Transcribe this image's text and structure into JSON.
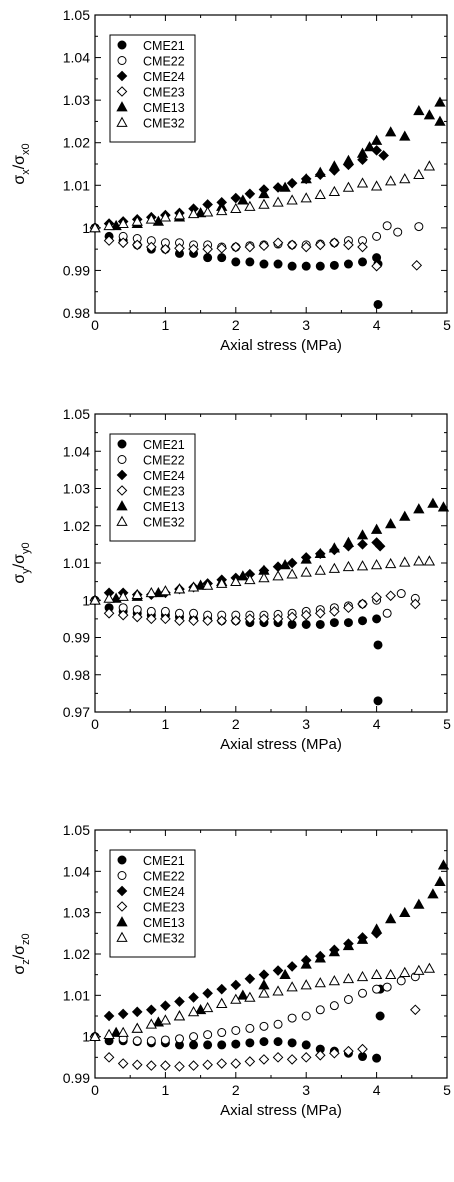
{
  "chart_data": [
    {
      "type": "scatter",
      "xlabel": "Axial stress (MPa)",
      "ylabel": {
        "main": "σ",
        "sub1": "x",
        "mid": "/σ",
        "sub2": "x0"
      },
      "xlim": [
        0,
        5
      ],
      "ylim": [
        0.98,
        1.05
      ],
      "xticks": [
        "0",
        "1",
        "2",
        "3",
        "4",
        "5"
      ],
      "yticks": [
        "0.98",
        "0.99",
        "1",
        "1.01",
        "1.02",
        "1.03",
        "1.04",
        "1.05"
      ],
      "grid": false,
      "legend_position": "top-left",
      "series": [
        {
          "name": "CME21",
          "marker": "circle-filled",
          "x": [
            0,
            0.2,
            0.4,
            0.6,
            0.8,
            1.0,
            1.2,
            1.4,
            1.6,
            1.8,
            2.0,
            2.2,
            2.4,
            2.6,
            2.8,
            3.0,
            3.2,
            3.4,
            3.6,
            3.8,
            4.0,
            4.02,
            4.02
          ],
          "y": [
            1.0,
            0.998,
            0.997,
            0.996,
            0.995,
            0.995,
            0.994,
            0.994,
            0.993,
            0.993,
            0.992,
            0.992,
            0.9915,
            0.9915,
            0.991,
            0.991,
            0.991,
            0.9912,
            0.9915,
            0.992,
            0.993,
            0.9915,
            0.982
          ]
        },
        {
          "name": "CME22",
          "marker": "circle-open",
          "x": [
            0,
            0.4,
            0.6,
            0.8,
            1.0,
            1.2,
            1.4,
            1.6,
            1.8,
            2.0,
            2.2,
            2.4,
            2.6,
            2.8,
            3.0,
            3.2,
            3.4,
            3.6,
            3.8,
            4.0,
            4.15,
            4.3,
            4.6
          ],
          "y": [
            1.0,
            0.998,
            0.9975,
            0.997,
            0.9965,
            0.9965,
            0.996,
            0.996,
            0.9955,
            0.9955,
            0.9958,
            0.996,
            0.9962,
            0.996,
            0.996,
            0.9962,
            0.9965,
            0.997,
            0.997,
            0.998,
            1.0005,
            0.999,
            1.0003
          ]
        },
        {
          "name": "CME24",
          "marker": "diamond-filled",
          "x": [
            0,
            0.2,
            0.4,
            0.6,
            0.8,
            1.0,
            1.2,
            1.4,
            1.6,
            1.8,
            2.0,
            2.2,
            2.4,
            2.6,
            2.8,
            3.0,
            3.2,
            3.4,
            3.6,
            3.8,
            4.0,
            4.1
          ],
          "y": [
            1.0,
            1.001,
            1.0015,
            1.002,
            1.0025,
            1.003,
            1.0035,
            1.0045,
            1.0055,
            1.006,
            1.007,
            1.008,
            1.009,
            1.0095,
            1.0105,
            1.0115,
            1.0125,
            1.0135,
            1.0148,
            1.016,
            1.0182,
            1.017
          ]
        },
        {
          "name": "CME23",
          "marker": "diamond-open",
          "x": [
            0,
            0.2,
            0.4,
            0.6,
            0.8,
            1.0,
            1.2,
            1.4,
            1.6,
            1.8,
            2.0,
            2.2,
            2.4,
            2.6,
            2.8,
            3.0,
            3.2,
            3.4,
            3.6,
            3.8,
            4.0,
            4.57
          ],
          "y": [
            1.0,
            0.997,
            0.9965,
            0.996,
            0.9955,
            0.995,
            0.9952,
            0.995,
            0.995,
            0.9952,
            0.9955,
            0.9955,
            0.9958,
            0.9965,
            0.996,
            0.9955,
            0.996,
            0.9965,
            0.996,
            0.9955,
            0.991,
            0.9912
          ]
        },
        {
          "name": "CME13",
          "marker": "triangle-filled",
          "x": [
            0,
            0.3,
            0.6,
            0.9,
            1.2,
            1.5,
            1.8,
            2.1,
            2.4,
            2.7,
            3.0,
            3.2,
            3.4,
            3.6,
            3.8,
            3.9,
            4.0,
            4.2,
            4.4,
            4.6,
            4.75,
            4.9,
            4.9
          ],
          "y": [
            1.0,
            1.0005,
            1.001,
            1.0015,
            1.0025,
            1.0035,
            1.005,
            1.0065,
            1.008,
            1.0095,
            1.0115,
            1.013,
            1.0145,
            1.0158,
            1.0175,
            1.019,
            1.0205,
            1.0225,
            1.0215,
            1.0275,
            1.0265,
            1.0295,
            1.025
          ]
        },
        {
          "name": "CME32",
          "marker": "triangle-open",
          "x": [
            0,
            0.2,
            0.4,
            0.6,
            0.8,
            1.0,
            1.2,
            1.4,
            1.6,
            1.8,
            2.0,
            2.2,
            2.4,
            2.6,
            2.8,
            3.0,
            3.2,
            3.4,
            3.6,
            3.8,
            4.0,
            4.2,
            4.4,
            4.6,
            4.75
          ],
          "y": [
            1.0,
            1.0005,
            1.001,
            1.0015,
            1.002,
            1.0025,
            1.003,
            1.0033,
            1.0037,
            1.004,
            1.0045,
            1.005,
            1.0055,
            1.006,
            1.0065,
            1.007,
            1.0078,
            1.0085,
            1.0095,
            1.0105,
            1.0098,
            1.011,
            1.0115,
            1.0125,
            1.0145
          ]
        }
      ]
    },
    {
      "type": "scatter",
      "xlabel": "Axial stress (MPa)",
      "ylabel": {
        "main": "σ",
        "sub1": "y",
        "mid": "/σ",
        "sub2": "y0"
      },
      "xlim": [
        0,
        5
      ],
      "ylim": [
        0.97,
        1.05
      ],
      "xticks": [
        "0",
        "1",
        "2",
        "3",
        "4",
        "5"
      ],
      "yticks": [
        "0.97",
        "0.98",
        "0.99",
        "1",
        "1.01",
        "1.02",
        "1.03",
        "1.04",
        "1.05"
      ],
      "grid": false,
      "legend_position": "top-left",
      "series": [
        {
          "name": "CME21",
          "marker": "circle-filled",
          "x": [
            0,
            0.2,
            0.4,
            0.6,
            0.8,
            1.0,
            1.2,
            1.4,
            1.6,
            1.8,
            2.0,
            2.2,
            2.4,
            2.6,
            2.8,
            3.0,
            3.2,
            3.4,
            3.6,
            3.8,
            4.0,
            4.02,
            4.02
          ],
          "y": [
            1.0,
            0.998,
            0.997,
            0.9965,
            0.996,
            0.996,
            0.9955,
            0.995,
            0.995,
            0.9945,
            0.9945,
            0.994,
            0.994,
            0.994,
            0.9935,
            0.9935,
            0.9935,
            0.994,
            0.994,
            0.9945,
            0.995,
            0.988,
            0.973
          ]
        },
        {
          "name": "CME22",
          "marker": "circle-open",
          "x": [
            0,
            0.4,
            0.6,
            0.8,
            1.0,
            1.2,
            1.4,
            1.6,
            1.8,
            2.0,
            2.2,
            2.4,
            2.6,
            2.8,
            3.0,
            3.2,
            3.4,
            3.6,
            3.8,
            4.0,
            4.15,
            4.35,
            4.55
          ],
          "y": [
            1.0,
            0.998,
            0.9975,
            0.997,
            0.997,
            0.9965,
            0.9965,
            0.996,
            0.996,
            0.996,
            0.996,
            0.996,
            0.9962,
            0.9965,
            0.997,
            0.9975,
            0.998,
            0.9985,
            0.999,
            1.0,
            0.9965,
            1.0018,
            1.0005
          ]
        },
        {
          "name": "CME24",
          "marker": "diamond-filled",
          "x": [
            0,
            0.2,
            0.4,
            0.6,
            0.8,
            1.0,
            1.2,
            1.4,
            1.6,
            1.8,
            2.0,
            2.2,
            2.4,
            2.6,
            2.8,
            3.0,
            3.2,
            3.4,
            3.6,
            3.8,
            4.0,
            4.05
          ],
          "y": [
            1.0,
            1.002,
            1.002,
            1.0015,
            1.0015,
            1.002,
            1.003,
            1.0035,
            1.0045,
            1.0055,
            1.006,
            1.007,
            1.008,
            1.009,
            1.01,
            1.0115,
            1.0125,
            1.0135,
            1.0145,
            1.015,
            1.0155,
            1.0145
          ]
        },
        {
          "name": "CME23",
          "marker": "diamond-open",
          "x": [
            0,
            0.2,
            0.4,
            0.6,
            0.8,
            1.0,
            1.2,
            1.4,
            1.6,
            1.8,
            2.0,
            2.2,
            2.4,
            2.6,
            2.8,
            3.0,
            3.2,
            3.4,
            3.6,
            3.8,
            4.0,
            4.2,
            4.55
          ],
          "y": [
            1.0,
            0.9965,
            0.996,
            0.9955,
            0.995,
            0.995,
            0.9945,
            0.9945,
            0.9945,
            0.9945,
            0.9945,
            0.995,
            0.995,
            0.995,
            0.9955,
            0.996,
            0.9965,
            0.997,
            0.998,
            0.999,
            1.0008,
            1.0012,
            0.999
          ]
        },
        {
          "name": "CME13",
          "marker": "triangle-filled",
          "x": [
            0,
            0.3,
            0.6,
            0.9,
            1.2,
            1.5,
            1.8,
            2.1,
            2.4,
            2.7,
            3.0,
            3.2,
            3.4,
            3.6,
            3.8,
            4.0,
            4.2,
            4.4,
            4.6,
            4.8,
            4.95
          ],
          "y": [
            1.0,
            1.0005,
            1.001,
            1.002,
            1.003,
            1.004,
            1.005,
            1.0065,
            1.008,
            1.0095,
            1.011,
            1.0125,
            1.014,
            1.0155,
            1.0175,
            1.019,
            1.0205,
            1.0225,
            1.0245,
            1.026,
            1.025
          ]
        },
        {
          "name": "CME32",
          "marker": "triangle-open",
          "x": [
            0,
            0.2,
            0.4,
            0.6,
            0.8,
            1.0,
            1.2,
            1.4,
            1.6,
            1.8,
            2.0,
            2.2,
            2.4,
            2.6,
            2.8,
            3.0,
            3.2,
            3.4,
            3.6,
            3.8,
            4.0,
            4.2,
            4.4,
            4.6,
            4.75
          ],
          "y": [
            1.0,
            1.0005,
            1.001,
            1.0015,
            1.002,
            1.0025,
            1.003,
            1.0035,
            1.004,
            1.0045,
            1.005,
            1.0055,
            1.006,
            1.0065,
            1.007,
            1.0075,
            1.008,
            1.0085,
            1.009,
            1.0092,
            1.0095,
            1.0098,
            1.0102,
            1.0105,
            1.0105
          ]
        }
      ]
    },
    {
      "type": "scatter",
      "xlabel": "Axial stress (MPa)",
      "ylabel": {
        "main": "σ",
        "sub1": "z",
        "mid": "/σ",
        "sub2": "z0"
      },
      "xlim": [
        0,
        5
      ],
      "ylim": [
        0.99,
        1.05
      ],
      "xticks": [
        "0",
        "1",
        "2",
        "3",
        "4",
        "5"
      ],
      "yticks": [
        "0.99",
        "1",
        "1.01",
        "1.02",
        "1.03",
        "1.04",
        "1.05"
      ],
      "grid": false,
      "legend_position": "top-left",
      "series": [
        {
          "name": "CME21",
          "marker": "circle-filled",
          "x": [
            0,
            0.2,
            0.4,
            0.6,
            0.8,
            1.0,
            1.2,
            1.4,
            1.6,
            1.8,
            2.0,
            2.2,
            2.4,
            2.6,
            2.8,
            3.0,
            3.2,
            3.4,
            3.6,
            3.8,
            4.0,
            4.05,
            4.05
          ],
          "y": [
            1.0,
            0.999,
            0.999,
            0.9988,
            0.9985,
            0.9985,
            0.998,
            0.998,
            0.998,
            0.998,
            0.9982,
            0.9985,
            0.9988,
            0.9988,
            0.9985,
            0.998,
            0.997,
            0.9965,
            0.996,
            0.9952,
            0.9948,
            1.005,
            1.0115
          ]
        },
        {
          "name": "CME22",
          "marker": "circle-open",
          "x": [
            0,
            0.4,
            0.6,
            0.8,
            1.0,
            1.2,
            1.4,
            1.6,
            1.8,
            2.0,
            2.2,
            2.4,
            2.6,
            2.8,
            3.0,
            3.2,
            3.4,
            3.6,
            3.8,
            4.0,
            4.15,
            4.35,
            4.55
          ],
          "y": [
            1.0,
            0.9995,
            0.999,
            0.999,
            0.9992,
            0.9995,
            1.0,
            1.0005,
            1.001,
            1.0015,
            1.002,
            1.0025,
            1.003,
            1.0045,
            1.005,
            1.0065,
            1.0075,
            1.009,
            1.0105,
            1.0115,
            1.012,
            1.0135,
            1.0145
          ]
        },
        {
          "name": "CME24",
          "marker": "diamond-filled",
          "x": [
            0.2,
            0.4,
            0.6,
            0.8,
            1.0,
            1.2,
            1.4,
            1.6,
            1.8,
            2.0,
            2.2,
            2.4,
            2.6,
            2.8,
            3.0,
            3.2,
            3.4,
            3.6,
            3.8,
            4.0
          ],
          "y": [
            1.005,
            1.0055,
            1.006,
            1.0065,
            1.0075,
            1.0085,
            1.0095,
            1.0105,
            1.0115,
            1.0125,
            1.014,
            1.015,
            1.016,
            1.017,
            1.0185,
            1.0195,
            1.021,
            1.0225,
            1.024,
            1.025
          ]
        },
        {
          "name": "CME23",
          "marker": "diamond-open",
          "x": [
            0,
            0.2,
            0.4,
            0.6,
            0.8,
            1.0,
            1.2,
            1.4,
            1.6,
            1.8,
            2.0,
            2.2,
            2.4,
            2.6,
            2.8,
            3.0,
            3.2,
            3.4,
            3.6,
            3.8,
            4.55
          ],
          "y": [
            1.0,
            0.995,
            0.9935,
            0.9932,
            0.993,
            0.993,
            0.9928,
            0.993,
            0.9932,
            0.9935,
            0.9935,
            0.994,
            0.9945,
            0.995,
            0.9945,
            0.995,
            0.9955,
            0.996,
            0.9965,
            0.997,
            1.0065
          ]
        },
        {
          "name": "CME13",
          "marker": "triangle-filled",
          "x": [
            0,
            0.3,
            0.6,
            0.9,
            1.2,
            1.5,
            1.8,
            2.1,
            2.4,
            2.7,
            3.0,
            3.2,
            3.4,
            3.6,
            3.8,
            4.0,
            4.2,
            4.4,
            4.6,
            4.8,
            4.9,
            4.95
          ],
          "y": [
            1.0,
            1.001,
            1.002,
            1.0035,
            1.005,
            1.0065,
            1.008,
            1.01,
            1.0125,
            1.015,
            1.0175,
            1.019,
            1.0205,
            1.022,
            1.0235,
            1.026,
            1.0285,
            1.03,
            1.032,
            1.0345,
            1.0375,
            1.0415
          ]
        },
        {
          "name": "CME32",
          "marker": "triangle-open",
          "x": [
            0,
            0.2,
            0.4,
            0.6,
            0.8,
            1.0,
            1.2,
            1.4,
            1.6,
            1.8,
            2.0,
            2.2,
            2.4,
            2.6,
            2.8,
            3.0,
            3.2,
            3.4,
            3.6,
            3.8,
            4.0,
            4.2,
            4.4,
            4.6,
            4.75
          ],
          "y": [
            1.0,
            1.0005,
            1.001,
            1.002,
            1.003,
            1.004,
            1.005,
            1.006,
            1.007,
            1.008,
            1.009,
            1.0095,
            1.0105,
            1.011,
            1.012,
            1.0125,
            1.013,
            1.0135,
            1.014,
            1.0145,
            1.015,
            1.015,
            1.0155,
            1.016,
            1.0165
          ]
        }
      ]
    }
  ]
}
